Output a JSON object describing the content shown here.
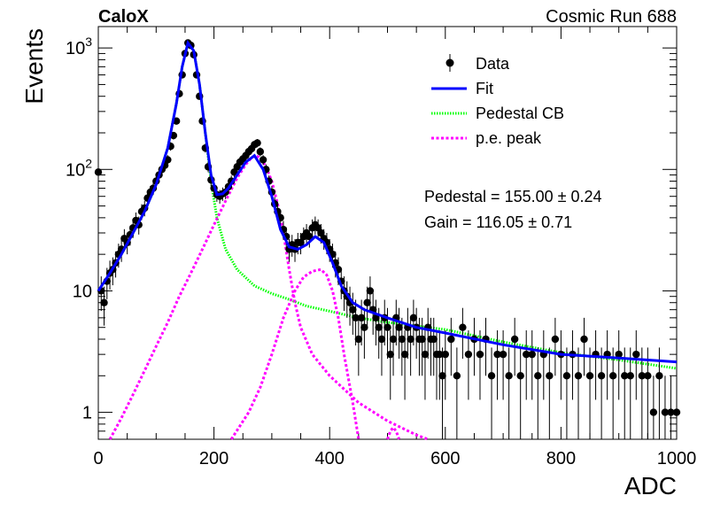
{
  "header": {
    "left_label": "CaloX",
    "right_label": "Cosmic Run 688"
  },
  "stats": {
    "pedestal": "Pedestal = 155.00 ± 0.24",
    "gain": "Gain = 116.05 ± 0.71"
  },
  "legend": {
    "data": "Data",
    "fit": "Fit",
    "pedestal": "Pedestal CB",
    "pe": "p.e. peak"
  },
  "colors": {
    "data": "#000000",
    "fit": "#0000ff",
    "pedestal": "#00ff00",
    "pe": "#ff00ff"
  },
  "chart_data": {
    "type": "scatter",
    "xlabel": "ADC",
    "ylabel": "Events",
    "xlim": [
      0,
      1000
    ],
    "ylim": [
      0.6,
      1500
    ],
    "y_scale": "log",
    "x_ticks": [
      "0",
      "200",
      "400",
      "600",
      "800",
      "1000"
    ],
    "y_ticks": [
      {
        "v": 1,
        "label": "1"
      },
      {
        "v": 10,
        "label": "10"
      },
      {
        "v": 100,
        "label": "10",
        "sup": "2"
      },
      {
        "v": 1000,
        "label": "10",
        "sup": "3"
      }
    ],
    "legend_position": "top-right",
    "grid": false,
    "series": [
      {
        "name": "Data",
        "style": "points with error bars",
        "points": [
          [
            0,
            95
          ],
          [
            5,
            10
          ],
          [
            10,
            8
          ],
          [
            15,
            12
          ],
          [
            20,
            14
          ],
          [
            25,
            15
          ],
          [
            30,
            17
          ],
          [
            35,
            20
          ],
          [
            40,
            22
          ],
          [
            45,
            27
          ],
          [
            50,
            25
          ],
          [
            55,
            29
          ],
          [
            60,
            33
          ],
          [
            65,
            38
          ],
          [
            70,
            35
          ],
          [
            75,
            45
          ],
          [
            80,
            48
          ],
          [
            85,
            58
          ],
          [
            90,
            65
          ],
          [
            95,
            70
          ],
          [
            100,
            80
          ],
          [
            105,
            90
          ],
          [
            110,
            100
          ],
          [
            115,
            108
          ],
          [
            120,
            120
          ],
          [
            125,
            155
          ],
          [
            130,
            190
          ],
          [
            135,
            250
          ],
          [
            140,
            420
          ],
          [
            145,
            600
          ],
          [
            150,
            900
          ],
          [
            155,
            1100
          ],
          [
            160,
            1050
          ],
          [
            165,
            880
          ],
          [
            170,
            600
          ],
          [
            175,
            400
          ],
          [
            180,
            250
          ],
          [
            185,
            150
          ],
          [
            190,
            105
          ],
          [
            195,
            82
          ],
          [
            200,
            70
          ],
          [
            205,
            62
          ],
          [
            210,
            60
          ],
          [
            215,
            63
          ],
          [
            220,
            65
          ],
          [
            225,
            72
          ],
          [
            230,
            80
          ],
          [
            235,
            95
          ],
          [
            240,
            105
          ],
          [
            245,
            115
          ],
          [
            250,
            122
          ],
          [
            255,
            130
          ],
          [
            260,
            140
          ],
          [
            265,
            148
          ],
          [
            270,
            160
          ],
          [
            275,
            165
          ],
          [
            280,
            140
          ],
          [
            285,
            120
          ],
          [
            290,
            100
          ],
          [
            295,
            80
          ],
          [
            300,
            65
          ],
          [
            305,
            52
          ],
          [
            310,
            45
          ],
          [
            315,
            40
          ],
          [
            320,
            32
          ],
          [
            325,
            28
          ],
          [
            330,
            22
          ],
          [
            335,
            24
          ],
          [
            340,
            22
          ],
          [
            345,
            25
          ],
          [
            350,
            25
          ],
          [
            355,
            28
          ],
          [
            360,
            30
          ],
          [
            365,
            28
          ],
          [
            370,
            33
          ],
          [
            375,
            35
          ],
          [
            380,
            33
          ],
          [
            385,
            30
          ],
          [
            390,
            27
          ],
          [
            395,
            25
          ],
          [
            400,
            22
          ],
          [
            405,
            20
          ],
          [
            410,
            17
          ],
          [
            415,
            15
          ],
          [
            420,
            12
          ],
          [
            425,
            10
          ],
          [
            430,
            9
          ],
          [
            435,
            8
          ],
          [
            440,
            7
          ],
          [
            445,
            6
          ],
          [
            450,
            4
          ],
          [
            455,
            6
          ],
          [
            460,
            5
          ],
          [
            465,
            8
          ],
          [
            470,
            10
          ],
          [
            475,
            7
          ],
          [
            480,
            6
          ],
          [
            485,
            5
          ],
          [
            490,
            4
          ],
          [
            495,
            6
          ],
          [
            500,
            5
          ],
          [
            505,
            3
          ],
          [
            510,
            4
          ],
          [
            515,
            6
          ],
          [
            520,
            5
          ],
          [
            525,
            4
          ],
          [
            530,
            3
          ],
          [
            535,
            5
          ],
          [
            540,
            4
          ],
          [
            545,
            6
          ],
          [
            550,
            5
          ],
          [
            555,
            4
          ],
          [
            560,
            4
          ],
          [
            565,
            3
          ],
          [
            570,
            5
          ],
          [
            575,
            4
          ],
          [
            580,
            4
          ],
          [
            585,
            3
          ],
          [
            590,
            3
          ],
          [
            595,
            2
          ],
          [
            600,
            3
          ],
          [
            610,
            4
          ],
          [
            620,
            2
          ],
          [
            630,
            5
          ],
          [
            640,
            3
          ],
          [
            650,
            4
          ],
          [
            660,
            3
          ],
          [
            670,
            4
          ],
          [
            680,
            2
          ],
          [
            690,
            3
          ],
          [
            700,
            3
          ],
          [
            710,
            2
          ],
          [
            720,
            4
          ],
          [
            730,
            2
          ],
          [
            740,
            3
          ],
          [
            750,
            3
          ],
          [
            760,
            2
          ],
          [
            770,
            3
          ],
          [
            780,
            2
          ],
          [
            790,
            4
          ],
          [
            800,
            3
          ],
          [
            810,
            2
          ],
          [
            820,
            3
          ],
          [
            830,
            2
          ],
          [
            840,
            4
          ],
          [
            850,
            2
          ],
          [
            860,
            3
          ],
          [
            870,
            2
          ],
          [
            880,
            3
          ],
          [
            890,
            2
          ],
          [
            900,
            3
          ],
          [
            910,
            2
          ],
          [
            920,
            2
          ],
          [
            930,
            3
          ],
          [
            940,
            2
          ],
          [
            950,
            2
          ],
          [
            960,
            1
          ],
          [
            970,
            2
          ],
          [
            980,
            1
          ],
          [
            990,
            1
          ],
          [
            1000,
            1
          ]
        ]
      },
      {
        "name": "Fit",
        "style": "solid",
        "points": [
          [
            0,
            10
          ],
          [
            20,
            14
          ],
          [
            40,
            20
          ],
          [
            60,
            30
          ],
          [
            80,
            45
          ],
          [
            100,
            75
          ],
          [
            120,
            150
          ],
          [
            135,
            350
          ],
          [
            145,
            700
          ],
          [
            155,
            1100
          ],
          [
            165,
            950
          ],
          [
            175,
            500
          ],
          [
            185,
            200
          ],
          [
            195,
            90
          ],
          [
            205,
            62
          ],
          [
            215,
            63
          ],
          [
            225,
            70
          ],
          [
            240,
            90
          ],
          [
            255,
            115
          ],
          [
            270,
            130
          ],
          [
            285,
            100
          ],
          [
            300,
            60
          ],
          [
            315,
            32
          ],
          [
            330,
            23
          ],
          [
            345,
            22
          ],
          [
            360,
            24
          ],
          [
            375,
            28
          ],
          [
            390,
            25
          ],
          [
            405,
            17
          ],
          [
            420,
            11
          ],
          [
            440,
            8
          ],
          [
            460,
            7
          ],
          [
            500,
            6
          ],
          [
            550,
            5
          ],
          [
            600,
            4.5
          ],
          [
            700,
            3.6
          ],
          [
            800,
            3.0
          ],
          [
            900,
            2.8
          ],
          [
            1000,
            2.6
          ]
        ]
      },
      {
        "name": "Pedestal CB",
        "style": "dotted",
        "points": [
          [
            0,
            10
          ],
          [
            20,
            14
          ],
          [
            40,
            20
          ],
          [
            60,
            30
          ],
          [
            80,
            45
          ],
          [
            100,
            75
          ],
          [
            120,
            150
          ],
          [
            135,
            350
          ],
          [
            145,
            700
          ],
          [
            155,
            1100
          ],
          [
            165,
            950
          ],
          [
            175,
            500
          ],
          [
            185,
            200
          ],
          [
            195,
            80
          ],
          [
            205,
            40
          ],
          [
            220,
            22
          ],
          [
            240,
            15
          ],
          [
            270,
            11
          ],
          [
            300,
            9.5
          ],
          [
            330,
            8.5
          ],
          [
            360,
            7.5
          ],
          [
            400,
            6.8
          ],
          [
            450,
            6
          ],
          [
            500,
            5.5
          ],
          [
            600,
            4.8
          ],
          [
            700,
            3.8
          ],
          [
            800,
            3.1
          ],
          [
            900,
            2.7
          ],
          [
            1000,
            2.3
          ]
        ]
      },
      {
        "name": "p.e. peak",
        "style": "dashed",
        "curves": [
          [
            [
              20,
              0.6
            ],
            [
              40,
              0.9
            ],
            [
              60,
              1.4
            ],
            [
              80,
              2.2
            ],
            [
              100,
              3.5
            ],
            [
              120,
              5.5
            ],
            [
              140,
              9
            ],
            [
              160,
              14
            ],
            [
              180,
              22
            ],
            [
              200,
              35
            ],
            [
              220,
              55
            ],
            [
              240,
              85
            ],
            [
              255,
              110
            ],
            [
              265,
              125
            ],
            [
              272,
              130
            ],
            [
              280,
              125
            ],
            [
              290,
              105
            ],
            [
              300,
              80
            ],
            [
              310,
              52
            ],
            [
              320,
              30
            ],
            [
              330,
              15
            ],
            [
              340,
              8
            ],
            [
              350,
              5
            ],
            [
              370,
              3
            ],
            [
              400,
              2
            ],
            [
              450,
              1.2
            ],
            [
              500,
              0.85
            ],
            [
              550,
              0.65
            ],
            [
              570,
              0.6
            ]
          ],
          [
            [
              230,
              0.6
            ],
            [
              260,
              1
            ],
            [
              280,
              1.6
            ],
            [
              300,
              3
            ],
            [
              320,
              6
            ],
            [
              340,
              10
            ],
            [
              355,
              13
            ],
            [
              370,
              14.5
            ],
            [
              385,
              15
            ],
            [
              395,
              13.5
            ],
            [
              405,
              10
            ],
            [
              415,
              6
            ],
            [
              425,
              3
            ],
            [
              440,
              1.2
            ],
            [
              450,
              0.6
            ]
          ],
          [
            [
              500,
              0.6
            ],
            [
              505,
              0.7
            ],
            [
              510,
              0.75
            ],
            [
              515,
              0.7
            ],
            [
              520,
              0.6
            ]
          ]
        ]
      }
    ]
  }
}
